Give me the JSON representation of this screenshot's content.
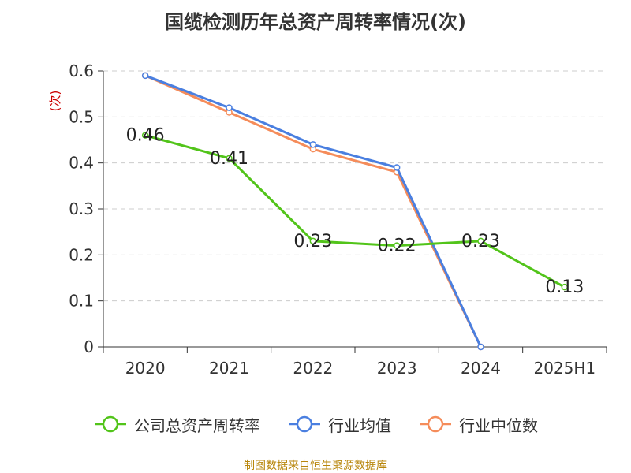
{
  "title": "国缆检测历年总资产周转率情况(次)",
  "source": "制图数据来自恒生聚源数据库",
  "chart_data": {
    "type": "line",
    "title": "国缆检测历年总资产周转率情况(次)",
    "ylabel": "(次)",
    "xlabel": "",
    "categories": [
      "2020",
      "2021",
      "2022",
      "2023",
      "2024",
      "2025H1"
    ],
    "ylim": [
      0,
      0.6
    ],
    "yticks": [
      0,
      0.1,
      0.2,
      0.3,
      0.4,
      0.5,
      0.6
    ],
    "ytick_labels": [
      "0",
      "0.1",
      "0.2",
      "0.3",
      "0.4",
      "0.5",
      "0.6"
    ],
    "grid": true,
    "legend_position": "bottom",
    "series": [
      {
        "name": "公司总资产周转率",
        "color": "#52c41a",
        "values": [
          0.46,
          0.41,
          0.23,
          0.22,
          0.23,
          0.13
        ],
        "labels": [
          "0.46",
          "0.41",
          "0.23",
          "0.22",
          "0.23",
          "0.13"
        ]
      },
      {
        "name": "行业均值",
        "color": "#4a7fe0",
        "values": [
          0.59,
          0.52,
          0.44,
          0.39,
          0.0,
          null
        ]
      },
      {
        "name": "行业中位数",
        "color": "#f58c5a",
        "values": [
          0.59,
          0.51,
          0.43,
          0.38,
          0.0,
          null
        ]
      }
    ]
  }
}
